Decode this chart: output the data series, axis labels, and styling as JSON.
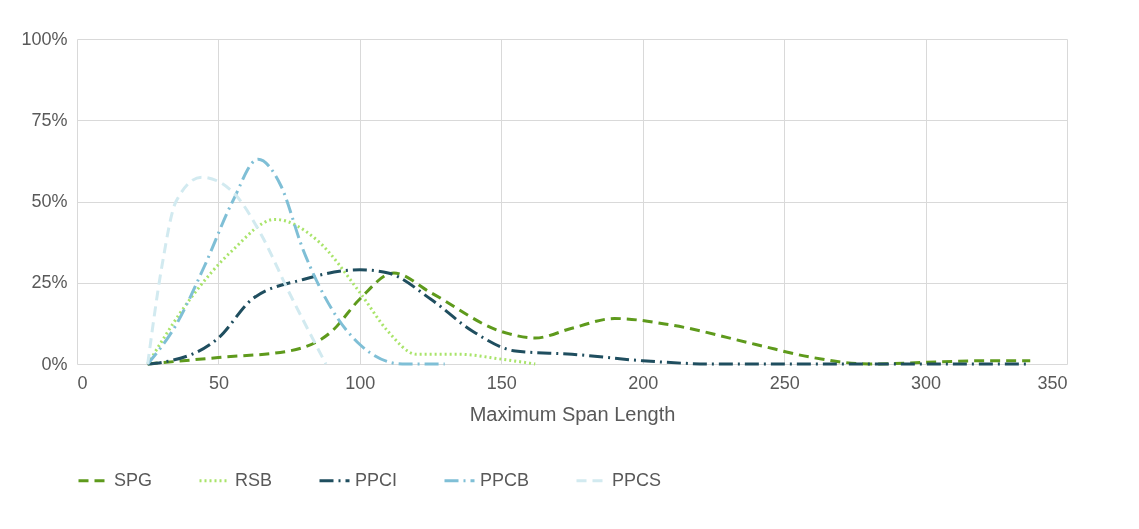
{
  "chart_data": {
    "type": "line",
    "xlabel": "Maximum Span Length",
    "xlim": [
      0,
      350
    ],
    "xticks": [
      0,
      50,
      100,
      150,
      200,
      250,
      300,
      350
    ],
    "ylim": [
      0,
      100
    ],
    "yticks": [
      {
        "value": 0,
        "label": "0%"
      },
      {
        "value": 25,
        "label": "25%"
      },
      {
        "value": 50,
        "label": "50%"
      },
      {
        "value": 75,
        "label": "75%"
      },
      {
        "value": 100,
        "label": "100%"
      }
    ],
    "grid": true,
    "legend": "bottom",
    "marker": "none",
    "series": [
      {
        "name": "SPG",
        "color": "#5e9a1c",
        "line_style": "dashed",
        "x": [
          25,
          50,
          75,
          90,
          100,
          112,
          125,
          150,
          162,
          175,
          190,
          210,
          240,
          260,
          280,
          300,
          320,
          337
        ],
        "values": [
          0,
          2,
          4,
          10,
          20,
          28,
          22,
          10,
          8,
          11,
          14,
          12,
          6,
          2,
          0,
          0.5,
          1,
          1
        ]
      },
      {
        "name": "RSB",
        "color": "#a9e46a",
        "line_style": "dotted",
        "x": [
          25,
          40,
          55,
          70,
          85,
          100,
          110,
          120,
          135,
          150,
          162
        ],
        "values": [
          0,
          20,
          35,
          44.5,
          38,
          22,
          10,
          3,
          3,
          1.5,
          0
        ]
      },
      {
        "name": "PPCI",
        "color": "#1f4e5f",
        "line_style": "dashdot",
        "x": [
          25,
          30,
          50,
          62,
          80,
          100,
          110,
          125,
          140,
          155,
          175,
          200,
          225,
          337
        ],
        "values": [
          0,
          0.5,
          8,
          20,
          26,
          29,
          28,
          20,
          10,
          4,
          3,
          1,
          0,
          0
        ]
      },
      {
        "name": "PPCB",
        "color": "#7fbfd6",
        "line_style": "dashdot",
        "x": [
          25,
          35,
          45,
          55,
          64,
          72,
          80,
          90,
          100,
          115,
          130
        ],
        "values": [
          0,
          12,
          30,
          50,
          63,
          55,
          35,
          17,
          6,
          0,
          0
        ]
      },
      {
        "name": "PPCS",
        "color": "#d2eaf0",
        "line_style": "dashed",
        "x": [
          25,
          30,
          35,
          44,
          55,
          65,
          75,
          85,
          88
        ],
        "values": [
          0,
          30,
          50,
          57.5,
          53,
          40,
          22,
          5,
          0
        ]
      }
    ]
  }
}
